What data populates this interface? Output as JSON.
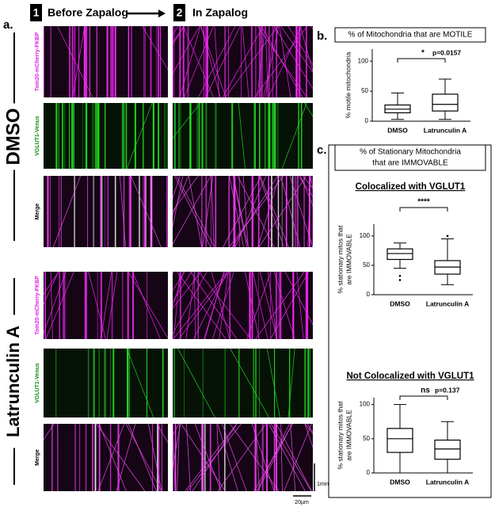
{
  "figure": {
    "panel_a": {
      "label": "a.",
      "step1_number": "1",
      "step1": "Before Zapalog",
      "step2_number": "2",
      "step2": "In Zapalog",
      "groups": [
        {
          "name": "DMSO",
          "channels": [
            "Tom20-mCherry-FKBP",
            "VGLUT1-Venus",
            "Merge"
          ]
        },
        {
          "name": "Latrunculin A",
          "channels": [
            "Tom20-mCherry-FKBP",
            "VGLUT1-Venus",
            "Merge"
          ]
        }
      ],
      "scale_time": "1min",
      "scale_length": "20µm"
    },
    "panel_b": {
      "label": "b."
    },
    "panel_c": {
      "label": "c.",
      "title": [
        "% of Stationary Mitochondria",
        "that are IMMOVABLE"
      ]
    }
  },
  "chart_data": [
    {
      "type": "box",
      "title": "% of Mitochondria that are MOTILE",
      "ylabel": [
        "% motile mitochondria"
      ],
      "categories": [
        "DMSO",
        "Latrunculin A"
      ],
      "boxes": [
        {
          "min": 3,
          "q1": 14,
          "median": 20,
          "q3": 27,
          "max": 47
        },
        {
          "min": 3,
          "q1": 17,
          "median": 28,
          "q3": 45,
          "max": 70
        }
      ],
      "ylim": [
        0,
        120
      ],
      "yticks": [
        0,
        50,
        100
      ],
      "significance": "*",
      "p_value": "p=0.0157"
    },
    {
      "type": "box",
      "title": "Colocalized with VGLUT1",
      "ylabel": [
        "% stationary mitos that",
        "are IMMOVABLE"
      ],
      "categories": [
        "DMSO",
        "Latrunculin A"
      ],
      "boxes": [
        {
          "min": 45,
          "q1": 60,
          "median": 70,
          "q3": 78,
          "max": 88,
          "outliers": [
            25,
            32
          ]
        },
        {
          "min": 17,
          "q1": 35,
          "median": 47,
          "q3": 58,
          "max": 95,
          "outliers": [
            100
          ]
        }
      ],
      "ylim": [
        0,
        120
      ],
      "yticks": [
        0,
        50,
        100
      ],
      "significance": "****"
    },
    {
      "type": "box",
      "title": "Not Colocalized with VGLUT1",
      "ylabel": [
        "% stationary mitos that",
        "are IMMOVABLE"
      ],
      "categories": [
        "DMSO",
        "Latrunculin A"
      ],
      "boxes": [
        {
          "min": 0,
          "q1": 30,
          "median": 50,
          "q3": 65,
          "max": 100
        },
        {
          "min": 0,
          "q1": 20,
          "median": 35,
          "q3": 48,
          "max": 75
        }
      ],
      "ylim": [
        0,
        110
      ],
      "yticks": [
        0,
        50,
        100
      ],
      "significance": "ns",
      "p_value": "p=0.137"
    }
  ]
}
